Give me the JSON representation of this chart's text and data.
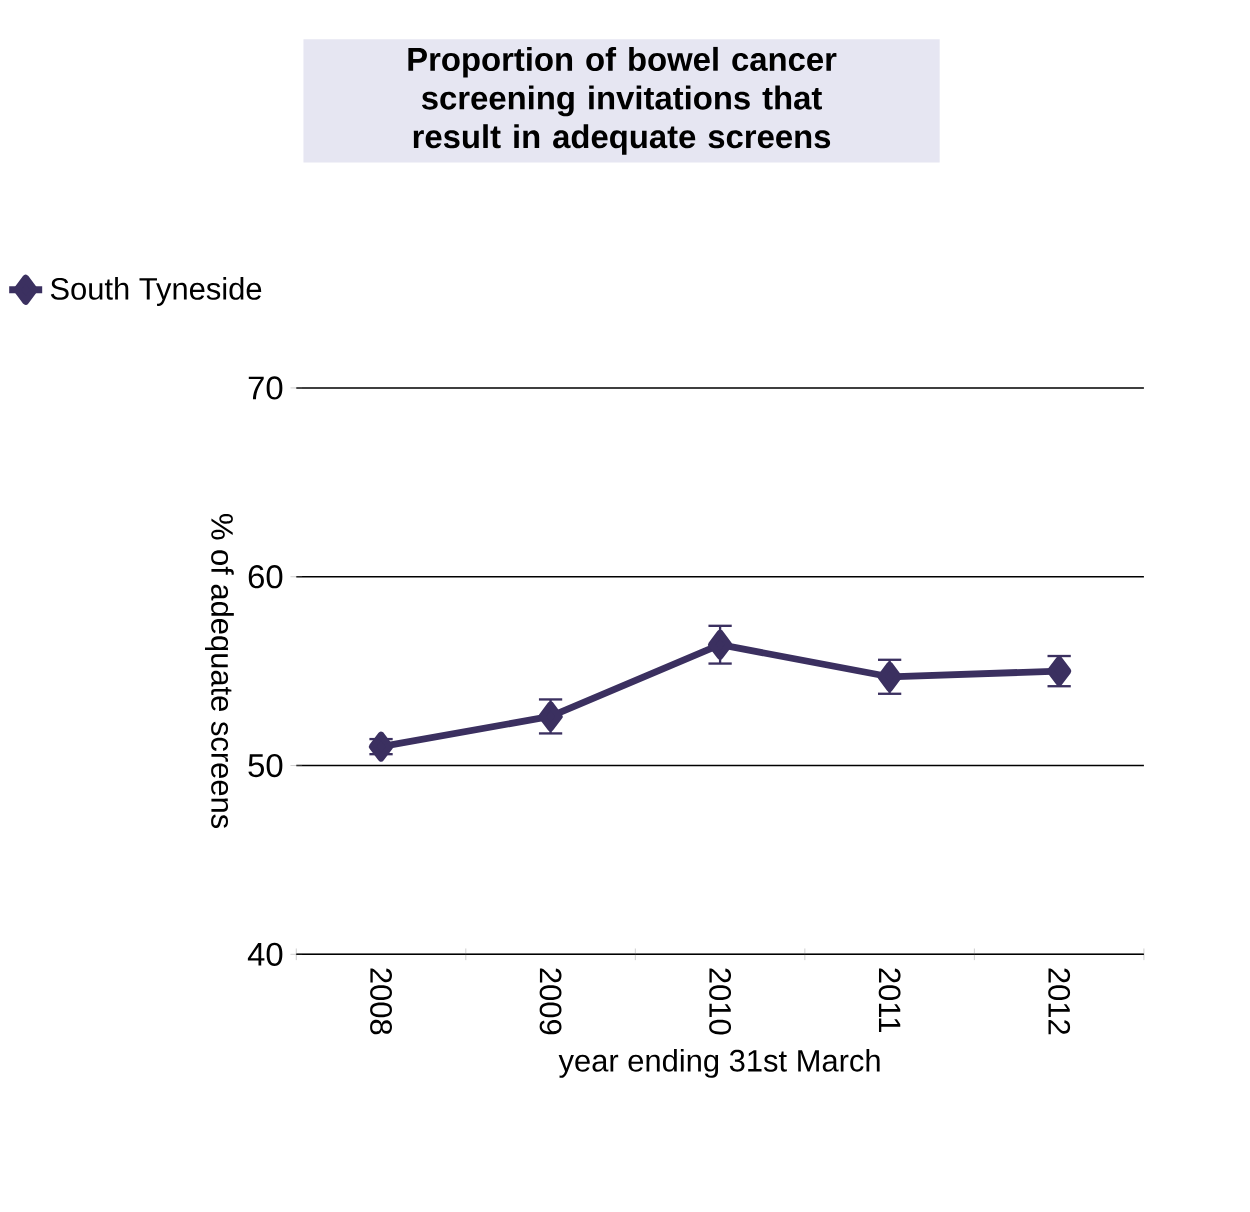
{
  "chart_data": {
    "type": "line",
    "title": "Proportion of bowel cancer screening invitations that result in adequate screens",
    "xlabel": "year ending 31st March",
    "ylabel": "% of adequate screens",
    "categories": [
      "2008",
      "2009",
      "2010",
      "2011",
      "2012"
    ],
    "series": [
      {
        "name": "South Tyneside",
        "color": "#3b3060",
        "values": [
          51.0,
          52.6,
          56.4,
          54.7,
          55.0
        ],
        "errors": [
          0.4,
          0.9,
          1.0,
          0.9,
          0.8
        ]
      }
    ],
    "ylim": [
      40,
      70
    ],
    "yticks": [
      40,
      50,
      60,
      70
    ],
    "grid": "y",
    "legend": "top left",
    "marker": "diamond",
    "line_style": "solid"
  }
}
